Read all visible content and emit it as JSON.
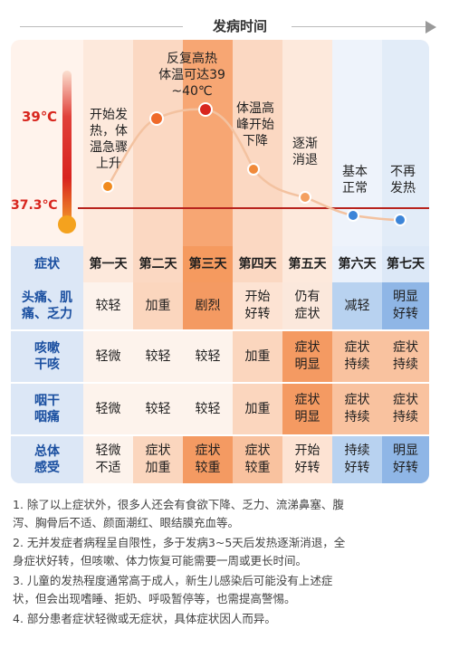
{
  "header": {
    "title": "发病时间"
  },
  "chart": {
    "temp_high": "39℃",
    "temp_base": "37.3℃",
    "labels": [
      "开始发\n热，体\n温急骤\n上升",
      "反复高热\n体温可达39\n~40℃",
      "体温高\n峰开始\n下降",
      "逐渐\n消退",
      "基本\n正常",
      "不再\n发热"
    ]
  },
  "table": {
    "corner": "症状",
    "days": [
      "第一天",
      "第二天",
      "第三天",
      "第四天",
      "第五天",
      "第六天",
      "第七天"
    ],
    "rows": [
      {
        "label": "头痛、肌\n痛、乏力",
        "cells": [
          "较轻",
          "加重",
          "剧烈",
          "开始\n好转",
          "仍有\n症状",
          "减轻",
          "明显\n好转"
        ]
      },
      {
        "label": "咳嗽\n干咳",
        "cells": [
          "轻微",
          "较轻",
          "较轻",
          "加重",
          "症状\n明显",
          "症状\n持续",
          "症状\n持续"
        ]
      },
      {
        "label": "咽干\n咽痛",
        "cells": [
          "轻微",
          "较轻",
          "较轻",
          "加重",
          "症状\n明显",
          "症状\n持续",
          "症状\n持续"
        ]
      },
      {
        "label": "总体\n感受",
        "cells": [
          "轻微\n不适",
          "症状\n加重",
          "症状\n较重",
          "症状\n较重",
          "开始\n好转",
          "持续\n好转",
          "明显\n好转"
        ]
      }
    ]
  },
  "notes": [
    "1. 除了以上症状外，很多人还会有食欲下降、乏力、流涕鼻塞、腹\n    泻、胸骨后不适、颜面潮红、眼结膜充血等。",
    "2. 无并发症者病程呈自限性，多于发病3~5天后发热逐渐消退，全\n    身症状好转，但咳嗽、体力恢复可能需要一周或更长时间。",
    "3. 儿童的发热程度通常高于成人，新生儿感染后可能没有上述症\n    状，但会出现嗜睡、拒奶、呼吸暂停等，也需提高警惕。",
    "4. 部分患者症状轻微或无症状，具体症状因人而异。"
  ],
  "colors": {
    "col_bg": [
      "#fde9dc",
      "#fbd8c2",
      "#f59a5f",
      "#fbd8c2",
      "#fde9dc",
      "#eaf1fb",
      "#dce8f7"
    ],
    "cells": [
      [
        "#fdf3ec",
        "#fbd6be",
        "#f49a62",
        "#fde3d3",
        "#fbe8dc",
        "#b8d2f0",
        "#8fb6e6"
      ],
      [
        "#fdf3ec",
        "#fdf3ec",
        "#fdf3ec",
        "#fbd6be",
        "#f49a62",
        "#f9c29f",
        "#f9c29f"
      ],
      [
        "#fdf3ec",
        "#fdf3ec",
        "#fdf3ec",
        "#fbd6be",
        "#f49a62",
        "#f9c29f",
        "#f9c29f"
      ],
      [
        "#fdf3ec",
        "#fbd6be",
        "#f49a62",
        "#f9c29f",
        "#fde3d3",
        "#b8d2f0",
        "#8fb6e6"
      ]
    ]
  }
}
